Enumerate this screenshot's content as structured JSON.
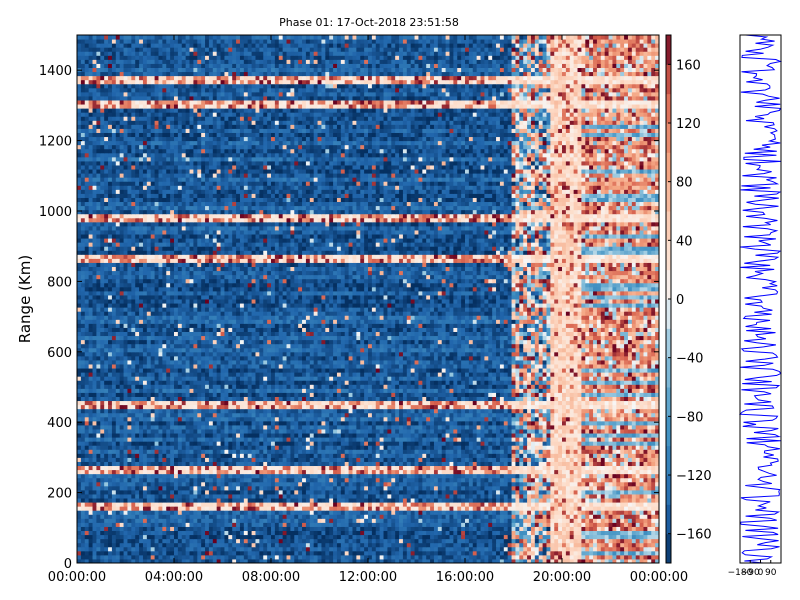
{
  "chart_data": [
    {
      "type": "heatmap",
      "title": "Phase 01: 17-Oct-2018 23:51:58",
      "ylabel": "Range (Km)",
      "xlabel": "",
      "x_ticks": [
        "00:00:00",
        "04:00:00",
        "08:00:00",
        "12:00:00",
        "16:00:00",
        "20:00:00",
        "00:00:00"
      ],
      "y_ticks": [
        0,
        200,
        400,
        600,
        800,
        1000,
        1200,
        1400
      ],
      "ylim": [
        0,
        1500
      ],
      "x_range_hours": [
        0,
        24
      ],
      "colormap": "RdBu_r",
      "colorbar": {
        "range": [
          -180,
          180
        ],
        "ticks": [
          160,
          120,
          80,
          40,
          0,
          -40,
          -80,
          -120,
          -160
        ]
      },
      "regions": [
        {
          "hours": [
            0,
            18
          ],
          "value_range": [
            -180,
            -120
          ],
          "note": "mostly blue"
        },
        {
          "hours": [
            18,
            19.5
          ],
          "value_range": [
            -180,
            180
          ],
          "note": "mixed"
        },
        {
          "hours": [
            19.5,
            20.8
          ],
          "value_range": [
            0,
            60
          ],
          "note": "light band"
        },
        {
          "hours": [
            20.8,
            24
          ],
          "value_range": [
            -60,
            180
          ],
          "note": "mostly red"
        }
      ],
      "bright_range_rows_km": [
        1370,
        1300,
        980,
        860,
        455,
        270,
        160
      ],
      "grid": false
    },
    {
      "type": "line",
      "title": "",
      "x_ticks": [
        "-180",
        "-90",
        "0",
        "90"
      ],
      "xlim": [
        -180,
        180
      ],
      "ylim": [
        0,
        1500
      ],
      "color": "#0000ff"
    }
  ],
  "colors": {
    "series_line": "#0000ff",
    "axis": "#000000",
    "background": "#ffffff"
  }
}
